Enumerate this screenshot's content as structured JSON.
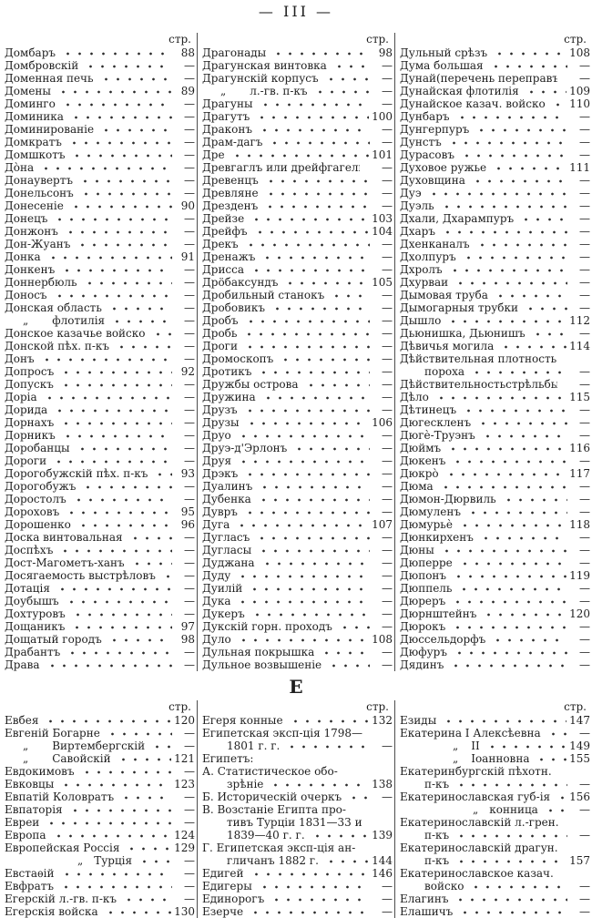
{
  "page_header": "— III —",
  "column_page_label": "стр.",
  "section_divider": "Е",
  "colors": {
    "paper": "#ffffff",
    "ink": "#1e1e1e"
  },
  "top_columns": [
    {
      "entries": [
        {
          "t": "Домбаръ",
          "p": "88"
        },
        {
          "t": "Домбровскій",
          "p": "—"
        },
        {
          "t": "Доменная печь",
          "p": "—"
        },
        {
          "t": "Домены",
          "p": "89"
        },
        {
          "t": "Доминго",
          "p": "—"
        },
        {
          "t": "Доминика",
          "p": "—"
        },
        {
          "t": "Доминированіе",
          "p": "—"
        },
        {
          "t": "Домкратъ",
          "p": "—"
        },
        {
          "t": "Домшкотъ",
          "p": "—"
        },
        {
          "t": "До̀на",
          "p": "—"
        },
        {
          "t": "Донаувертъ",
          "p": "—"
        },
        {
          "t": "Донельсонъ",
          "p": "—"
        },
        {
          "t": "Донесеніе",
          "p": "90"
        },
        {
          "t": "Донецъ",
          "p": "—"
        },
        {
          "t": "Донжонъ",
          "p": "—"
        },
        {
          "t": "Дон-Жуанъ",
          "p": "—"
        },
        {
          "t": "Донка",
          "p": "91"
        },
        {
          "t": "Донкенъ",
          "p": "—"
        },
        {
          "t": "Доннербюль",
          "p": "—"
        },
        {
          "t": "Доносъ",
          "p": "—"
        },
        {
          "t": "Донская область",
          "p": "—"
        },
        {
          "pre": "„",
          "t": "флотилія",
          "p": "—",
          "cls": "s2"
        },
        {
          "t": "Донское казачье войско",
          "p": "—"
        },
        {
          "t": "Донской пѣх. п-къ",
          "p": "—"
        },
        {
          "t": "Донъ",
          "p": "—"
        },
        {
          "t": "Допросъ",
          "p": "92"
        },
        {
          "t": "Допускъ",
          "p": "—"
        },
        {
          "t": "Доріа",
          "p": "—"
        },
        {
          "t": "Дорида",
          "p": "—"
        },
        {
          "t": "Дорнахъ",
          "p": "—"
        },
        {
          "t": "Дорникъ",
          "p": "—"
        },
        {
          "t": "Доробанцы",
          "p": "—"
        },
        {
          "t": "Дороги",
          "p": "—"
        },
        {
          "t": "Дорогобужскій пѣх. п-къ",
          "p": "93"
        },
        {
          "t": "Дорогобужъ",
          "p": "—"
        },
        {
          "t": "Доростолъ",
          "p": "—"
        },
        {
          "t": "Дороховъ",
          "p": "95"
        },
        {
          "t": "Дорошенко",
          "p": "96"
        },
        {
          "t": "Доска винтовальная",
          "p": "—"
        },
        {
          "t": "Доспѣхъ",
          "p": "—"
        },
        {
          "t": "Дост-Магометъ-ханъ",
          "p": "—"
        },
        {
          "t": "Досягаемость выстрѣловъ",
          "p": "—"
        },
        {
          "t": "Дотація",
          "p": "—"
        },
        {
          "t": "Доубышъ",
          "p": "—"
        },
        {
          "t": "Дохтуровъ",
          "p": "—"
        },
        {
          "t": "Дощаникъ",
          "p": "97"
        },
        {
          "t": "Дощатый городъ",
          "p": "98"
        },
        {
          "t": "Драбантъ",
          "p": "—"
        },
        {
          "t": "Драва",
          "p": "—"
        }
      ]
    },
    {
      "entries": [
        {
          "t": "Драгонады",
          "p": "98"
        },
        {
          "t": "Драгунская винтовка",
          "p": "—"
        },
        {
          "t": "Драгунскій корпусъ",
          "p": "—"
        },
        {
          "pre": "„",
          "t": "л.-гв. п-къ",
          "p": "—",
          "cls": "s2"
        },
        {
          "t": "Драгуны",
          "p": "—"
        },
        {
          "t": "Драгутъ",
          "p": "100"
        },
        {
          "t": "Драконъ",
          "p": "—"
        },
        {
          "t": "Драм-дагъ",
          "p": "—"
        },
        {
          "t": "Дре",
          "p": "101"
        },
        {
          "t": "Древгаглъ или дрейфгагель",
          "p": "—"
        },
        {
          "t": "Древенцъ",
          "p": "—"
        },
        {
          "t": "Древляне",
          "p": "—"
        },
        {
          "t": "Дрезденъ",
          "p": "—"
        },
        {
          "t": "Дрейзе",
          "p": "103"
        },
        {
          "t": "Дрейфъ",
          "p": "104"
        },
        {
          "t": "Дрекъ",
          "p": "—"
        },
        {
          "t": "Дренажъ",
          "p": "—"
        },
        {
          "t": "Дрисса",
          "p": "—"
        },
        {
          "t": "Дрöбаксундъ",
          "p": "105"
        },
        {
          "t": "Дробильный станокъ",
          "p": "—"
        },
        {
          "t": "Дробовикъ",
          "p": "—"
        },
        {
          "t": "Дробъ",
          "p": "—"
        },
        {
          "t": "Дробь",
          "p": "—"
        },
        {
          "t": "Дроги",
          "p": "—"
        },
        {
          "t": "Дромоскопъ",
          "p": "—"
        },
        {
          "t": "Дротикъ",
          "p": "—"
        },
        {
          "t": "Дружбы острова",
          "p": "—"
        },
        {
          "t": "Дружина",
          "p": "—"
        },
        {
          "t": "Друзъ",
          "p": "—"
        },
        {
          "t": "Друзы",
          "p": "106"
        },
        {
          "t": "Друо",
          "p": "—"
        },
        {
          "t": "Друэ-д'Эрлонъ",
          "p": "—"
        },
        {
          "t": "Друя",
          "p": "—"
        },
        {
          "t": "Дрэкъ",
          "p": "—"
        },
        {
          "t": "Дуалинъ",
          "p": "—"
        },
        {
          "t": "Дубенка",
          "p": "—"
        },
        {
          "t": "Дувръ",
          "p": "—"
        },
        {
          "t": "Дуга",
          "p": "107"
        },
        {
          "t": "Дугласъ",
          "p": "—"
        },
        {
          "t": "Дугласы",
          "p": "—"
        },
        {
          "t": "Дуджана",
          "p": "—"
        },
        {
          "t": "Дуду",
          "p": "—"
        },
        {
          "t": "Дуилій",
          "p": "—"
        },
        {
          "t": "Дука",
          "p": "—"
        },
        {
          "t": "Дукеръ",
          "p": "—"
        },
        {
          "t": "Дукскій горн. проходъ",
          "p": "—"
        },
        {
          "t": "Дуло",
          "p": "108"
        },
        {
          "t": "Дульная покрышка",
          "p": "—"
        },
        {
          "t": "Дульное возвышеніе",
          "p": "—"
        }
      ]
    },
    {
      "entries": [
        {
          "t": "Дульный срѣзъ",
          "p": "108"
        },
        {
          "t": "Дума большая",
          "p": "—"
        },
        {
          "t": "Дунай(перечень переправъ)",
          "p": "—"
        },
        {
          "t": "Дунайская флотилія",
          "p": "109"
        },
        {
          "t": "Дунайское казач. войско",
          "p": "110"
        },
        {
          "t": "Дунбаръ",
          "p": "—"
        },
        {
          "t": "Дунгерпуръ",
          "p": "—"
        },
        {
          "t": "Дунстъ",
          "p": "—"
        },
        {
          "t": "Дурасовъ",
          "p": "—"
        },
        {
          "t": "Духовое ружье",
          "p": "111"
        },
        {
          "t": "Духовщина",
          "p": "—"
        },
        {
          "t": "Дуэ",
          "p": "—"
        },
        {
          "t": "Дуэль",
          "p": "—"
        },
        {
          "t": "Дхали, Дхарампуръ",
          "p": "—"
        },
        {
          "t": "Дхаръ",
          "p": "—"
        },
        {
          "t": "Дхенканалъ",
          "p": "—"
        },
        {
          "t": "Дхолпуръ",
          "p": "—"
        },
        {
          "t": "Дхролъ",
          "p": "—"
        },
        {
          "t": "Дхурваи",
          "p": "—"
        },
        {
          "t": "Дымовая труба",
          "p": "—"
        },
        {
          "t": "Дымогарныя трубки",
          "p": "—"
        },
        {
          "t": "Дышло",
          "p": "112"
        },
        {
          "t": "Дьюнишка, Дьюнишъ",
          "p": "—"
        },
        {
          "t": "Дѣвичья могила",
          "p": "114"
        },
        {
          "t": "Дѣйствительная плотность",
          "p": ""
        },
        {
          "t": "пороха",
          "p": "—",
          "cls": "c"
        },
        {
          "t": "Дѣйствительностьстрѣльбы",
          "p": "—"
        },
        {
          "t": "Дѣло",
          "p": "115"
        },
        {
          "t": "Дѣтинецъ",
          "p": "—"
        },
        {
          "t": "Дюгескленъ",
          "p": "—"
        },
        {
          "t": "Дюгѐ-Труэнъ",
          "p": "—"
        },
        {
          "t": "Дюймъ",
          "p": "116"
        },
        {
          "t": "Дюкенъ",
          "p": "—"
        },
        {
          "t": "Дюкро̀",
          "p": "117"
        },
        {
          "t": "Дюма",
          "p": "—"
        },
        {
          "t": "Дюмон-Дюрвиль",
          "p": "—"
        },
        {
          "t": "Дюмуленъ",
          "p": "—"
        },
        {
          "t": "Дюмурьѐ",
          "p": "118"
        },
        {
          "t": "Дюнкирхенъ",
          "p": "—"
        },
        {
          "t": "Дюны",
          "p": "—"
        },
        {
          "t": "Дюперре",
          "p": "—"
        },
        {
          "t": "Дюпонъ",
          "p": "119"
        },
        {
          "t": "Дюппель",
          "p": "—"
        },
        {
          "t": "Дюреръ",
          "p": "—"
        },
        {
          "t": "Дюрнштейнъ",
          "p": "120"
        },
        {
          "t": "Дюрокъ",
          "p": "—"
        },
        {
          "t": "Дюссельдорфъ",
          "p": "—"
        },
        {
          "t": "Дюфуръ",
          "p": "—"
        },
        {
          "t": "Дядинъ",
          "p": "—"
        }
      ]
    }
  ],
  "bottom_columns": [
    {
      "entries": [
        {
          "t": "Евбея",
          "p": "120"
        },
        {
          "t": "Евгеній Богарне",
          "p": "—"
        },
        {
          "pre": "„",
          "t": "Виртембергскій",
          "p": "—",
          "cls": "s2"
        },
        {
          "pre": "„",
          "t": "Савойскій",
          "p": "121",
          "cls": "s2"
        },
        {
          "t": "Евдокимовъ",
          "p": "—"
        },
        {
          "t": "Евковцы",
          "p": "123"
        },
        {
          "t": "Евпатій Коловратъ",
          "p": "—"
        },
        {
          "t": "Евпаторія",
          "p": "—"
        },
        {
          "t": "Евреи",
          "p": "—"
        },
        {
          "t": "Европа",
          "p": "124"
        },
        {
          "t": "Европейская Россія",
          "p": "129"
        },
        {
          "pre": "„",
          "t": "Турція",
          "p": "—",
          "cls": "s4"
        },
        {
          "t": "Евстаѳій",
          "p": "—"
        },
        {
          "t": "Евфратъ",
          "p": "—"
        },
        {
          "t": "Егерскій л.-гв. п-къ",
          "p": "—"
        },
        {
          "t": "Егерскія войска",
          "p": "130"
        }
      ]
    },
    {
      "entries": [
        {
          "t": "Егеря конные",
          "p": "132"
        },
        {
          "t": "Египетская эксп-ція 1798—",
          "p": ""
        },
        {
          "t": "1801 г. г.",
          "p": "—",
          "cls": "c"
        },
        {
          "t": "Египетъ:",
          "p": ""
        },
        {
          "t": "А. Статистическое обо-",
          "p": ""
        },
        {
          "t": "зрѣніе",
          "p": "138",
          "cls": "c"
        },
        {
          "t": "Б. Историческій очеркъ",
          "p": "—"
        },
        {
          "t": "В. Возстаніе Египта про-",
          "p": ""
        },
        {
          "t": "тивъ Турціи 1831—33 и",
          "p": "",
          "cls": "c"
        },
        {
          "t": "1839—40 г. г.",
          "p": "139",
          "cls": "c"
        },
        {
          "t": "Г. Египетская эксп-ція ан-",
          "p": ""
        },
        {
          "t": "гличанъ 1882 г.",
          "p": "144",
          "cls": "c"
        },
        {
          "t": "Едигей",
          "p": "146"
        },
        {
          "t": "Едигеры",
          "p": "—"
        },
        {
          "t": "Единорогъ",
          "p": "—"
        },
        {
          "t": "Езерче",
          "p": "—"
        }
      ]
    },
    {
      "entries": [
        {
          "t": "Езиды",
          "p": "147"
        },
        {
          "t": "Екатерина I Алексѣевна",
          "p": "—"
        },
        {
          "pre": "„",
          "t": "II",
          "p": "149",
          "cls": "s3"
        },
        {
          "pre": "„",
          "t": "Іоанновна",
          "p": "155",
          "cls": "s3"
        },
        {
          "t": "Екатеринбургскій пѣхотн.",
          "p": ""
        },
        {
          "t": "п-къ",
          "p": "—",
          "cls": "c"
        },
        {
          "t": "Екатеринославская губ-ія",
          "p": "156"
        },
        {
          "pre": "„",
          "t": "конница",
          "p": "—",
          "cls": "s4"
        },
        {
          "t": "Екатеринославскій л.-грен.",
          "p": ""
        },
        {
          "t": "п-къ",
          "p": "—",
          "cls": "c"
        },
        {
          "t": "Екатеринославскій драгун.",
          "p": ""
        },
        {
          "t": "п-къ",
          "p": "157",
          "cls": "c"
        },
        {
          "t": "Екатеринославское казач.",
          "p": ""
        },
        {
          "t": "войско",
          "p": "—",
          "cls": "c"
        },
        {
          "t": "Елагинъ",
          "p": "—"
        },
        {
          "t": "Елашичъ",
          "p": "—"
        }
      ]
    }
  ]
}
